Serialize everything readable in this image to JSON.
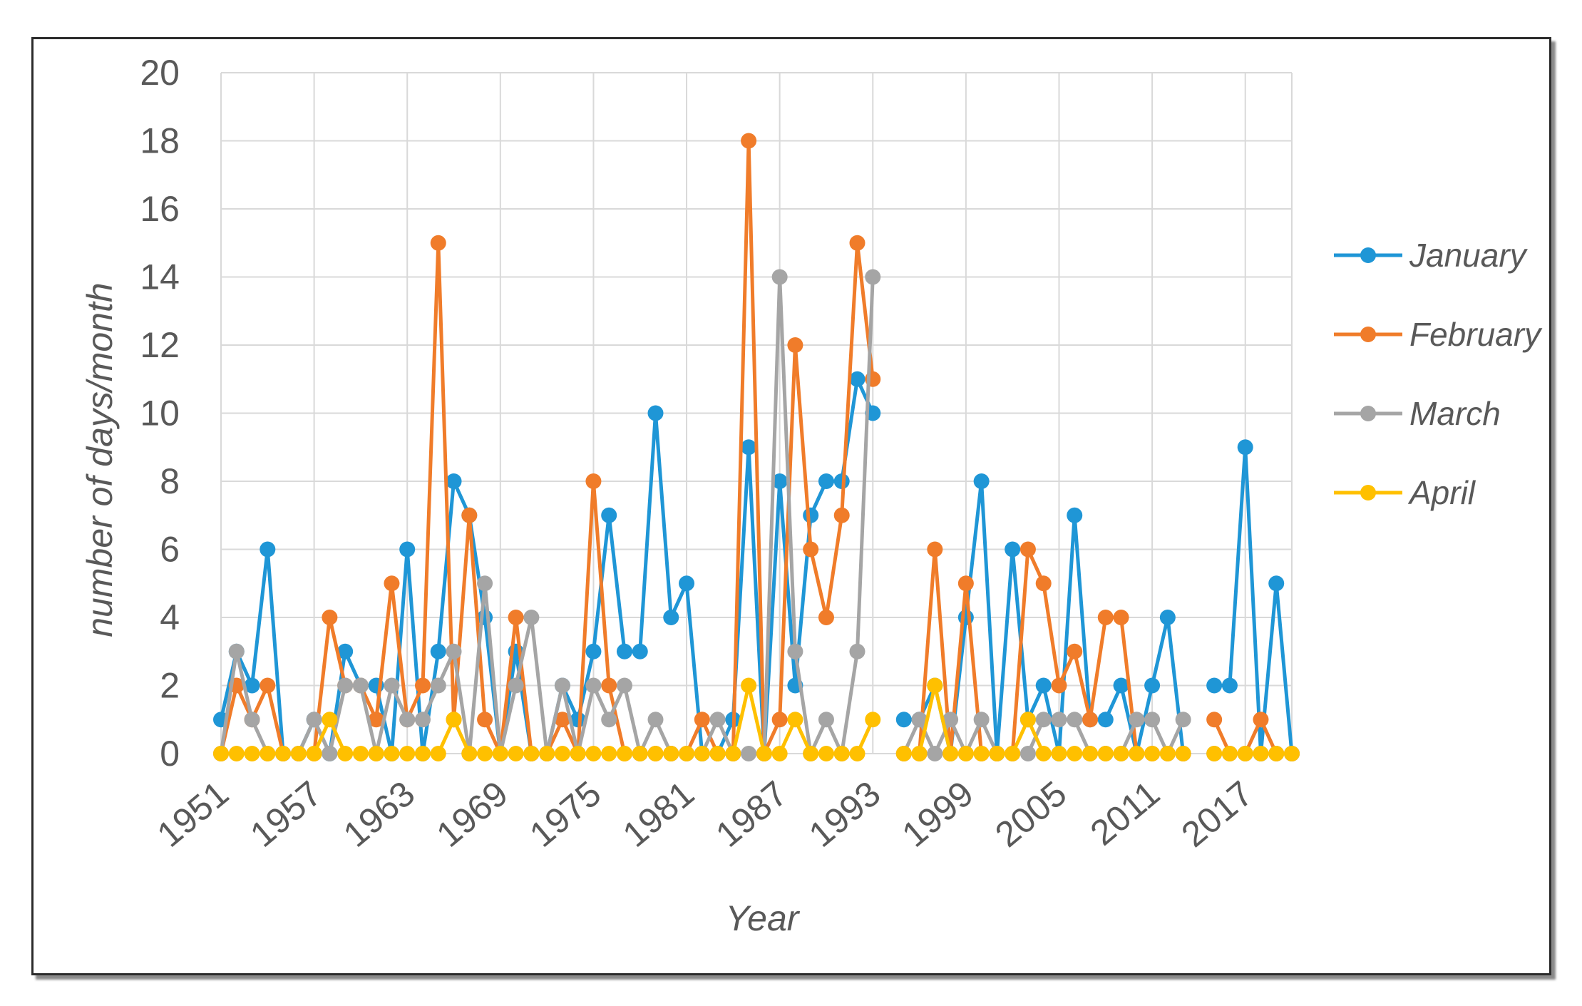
{
  "chart_data": {
    "type": "line",
    "title": "",
    "xlabel": "Year",
    "ylabel": "number of days/month",
    "ylim": [
      0,
      20
    ],
    "yticks": [
      0,
      2,
      4,
      6,
      8,
      10,
      12,
      14,
      16,
      18,
      20
    ],
    "xlim": [
      1951,
      2020
    ],
    "xticks": [
      "1951",
      "1957",
      "1963",
      "1969",
      "1975",
      "1981",
      "1987",
      "1993",
      "1999",
      "2005",
      "2011",
      "2017"
    ],
    "grid": "vertical-and-horizontal",
    "legend_position": "right",
    "series": [
      {
        "name": "January",
        "color": "#1f96d6",
        "points": [
          [
            1951,
            1
          ],
          [
            1952,
            3
          ],
          [
            1953,
            2
          ],
          [
            1954,
            6
          ],
          [
            1955,
            0
          ],
          [
            1956,
            0
          ],
          [
            1957,
            1
          ],
          [
            1958,
            0
          ],
          [
            1959,
            3
          ],
          [
            1960,
            2
          ],
          [
            1961,
            2
          ],
          [
            1962,
            0
          ],
          [
            1963,
            6
          ],
          [
            1964,
            0
          ],
          [
            1965,
            3
          ],
          [
            1966,
            8
          ],
          [
            1967,
            7
          ],
          [
            1968,
            4
          ],
          [
            1969,
            0
          ],
          [
            1970,
            3
          ],
          [
            1971,
            0
          ],
          [
            1972,
            0
          ],
          [
            1973,
            2
          ],
          [
            1974,
            1
          ],
          [
            1975,
            3
          ],
          [
            1976,
            7
          ],
          [
            1977,
            3
          ],
          [
            1978,
            3
          ],
          [
            1979,
            10
          ],
          [
            1980,
            4
          ],
          [
            1981,
            5
          ],
          [
            1982,
            0
          ],
          [
            1983,
            0
          ],
          [
            1984,
            1
          ],
          [
            1985,
            9
          ],
          [
            1986,
            0
          ],
          [
            1987,
            8
          ],
          [
            1988,
            2
          ],
          [
            1989,
            7
          ],
          [
            1990,
            8
          ],
          [
            1991,
            8
          ],
          [
            1992,
            11
          ],
          [
            1993,
            10
          ],
          null,
          [
            1995,
            1
          ],
          [
            1996,
            1
          ],
          [
            1997,
            2
          ],
          [
            1998,
            0
          ],
          [
            1999,
            4
          ],
          [
            2000,
            8
          ],
          [
            2001,
            0
          ],
          [
            2002,
            6
          ],
          [
            2003,
            1
          ],
          [
            2004,
            2
          ],
          [
            2005,
            0
          ],
          [
            2006,
            7
          ],
          [
            2007,
            1
          ],
          [
            2008,
            1
          ],
          [
            2009,
            2
          ],
          [
            2010,
            0
          ],
          [
            2011,
            2
          ],
          [
            2012,
            4
          ],
          [
            2013,
            0
          ],
          null,
          [
            2015,
            2
          ],
          [
            2016,
            2
          ],
          [
            2017,
            9
          ],
          [
            2018,
            0
          ],
          [
            2019,
            5
          ],
          [
            2020,
            0
          ]
        ]
      },
      {
        "name": "February",
        "color": "#f07c2a",
        "points": [
          [
            1951,
            0
          ],
          [
            1952,
            2
          ],
          [
            1953,
            1
          ],
          [
            1954,
            2
          ],
          [
            1955,
            0
          ],
          [
            1956,
            0
          ],
          [
            1957,
            0
          ],
          [
            1958,
            4
          ],
          [
            1959,
            2
          ],
          [
            1960,
            2
          ],
          [
            1961,
            1
          ],
          [
            1962,
            5
          ],
          [
            1963,
            1
          ],
          [
            1964,
            2
          ],
          [
            1965,
            15
          ],
          [
            1966,
            1
          ],
          [
            1967,
            7
          ],
          [
            1968,
            1
          ],
          [
            1969,
            0
          ],
          [
            1970,
            4
          ],
          [
            1971,
            0
          ],
          [
            1972,
            0
          ],
          [
            1973,
            1
          ],
          [
            1974,
            0
          ],
          [
            1975,
            8
          ],
          [
            1976,
            2
          ],
          [
            1977,
            0
          ],
          [
            1978,
            0
          ],
          [
            1979,
            0
          ],
          [
            1980,
            0
          ],
          [
            1981,
            0
          ],
          [
            1982,
            1
          ],
          [
            1983,
            0
          ],
          [
            1984,
            0
          ],
          [
            1985,
            18
          ],
          [
            1986,
            0
          ],
          [
            1987,
            1
          ],
          [
            1988,
            12
          ],
          [
            1989,
            6
          ],
          [
            1990,
            4
          ],
          [
            1991,
            7
          ],
          [
            1992,
            15
          ],
          [
            1993,
            11
          ],
          null,
          [
            1995,
            0
          ],
          [
            1996,
            0
          ],
          [
            1997,
            6
          ],
          [
            1998,
            0
          ],
          [
            1999,
            5
          ],
          [
            2000,
            0
          ],
          [
            2001,
            0
          ],
          [
            2002,
            0
          ],
          [
            2003,
            6
          ],
          [
            2004,
            5
          ],
          [
            2005,
            2
          ],
          [
            2006,
            3
          ],
          [
            2007,
            1
          ],
          [
            2008,
            4
          ],
          [
            2009,
            4
          ],
          [
            2010,
            0
          ],
          [
            2011,
            0
          ],
          [
            2012,
            0
          ],
          [
            2013,
            0
          ],
          null,
          [
            2015,
            1
          ],
          [
            2016,
            0
          ],
          [
            2017,
            0
          ],
          [
            2018,
            1
          ],
          [
            2019,
            0
          ],
          [
            2020,
            0
          ]
        ]
      },
      {
        "name": "March",
        "color": "#a5a5a5",
        "points": [
          [
            1951,
            0
          ],
          [
            1952,
            3
          ],
          [
            1953,
            1
          ],
          [
            1954,
            0
          ],
          [
            1955,
            0
          ],
          [
            1956,
            0
          ],
          [
            1957,
            1
          ],
          [
            1958,
            0
          ],
          [
            1959,
            2
          ],
          [
            1960,
            2
          ],
          [
            1961,
            0
          ],
          [
            1962,
            2
          ],
          [
            1963,
            1
          ],
          [
            1964,
            1
          ],
          [
            1965,
            2
          ],
          [
            1966,
            3
          ],
          [
            1967,
            0
          ],
          [
            1968,
            5
          ],
          [
            1969,
            0
          ],
          [
            1970,
            2
          ],
          [
            1971,
            4
          ],
          [
            1972,
            0
          ],
          [
            1973,
            2
          ],
          [
            1974,
            0
          ],
          [
            1975,
            2
          ],
          [
            1976,
            1
          ],
          [
            1977,
            2
          ],
          [
            1978,
            0
          ],
          [
            1979,
            1
          ],
          [
            1980,
            0
          ],
          [
            1981,
            0
          ],
          [
            1982,
            0
          ],
          [
            1983,
            1
          ],
          [
            1984,
            0
          ],
          [
            1985,
            0
          ],
          [
            1986,
            0
          ],
          [
            1987,
            14
          ],
          [
            1988,
            3
          ],
          [
            1989,
            0
          ],
          [
            1990,
            1
          ],
          [
            1991,
            0
          ],
          [
            1992,
            3
          ],
          [
            1993,
            14
          ],
          null,
          [
            1995,
            0
          ],
          [
            1996,
            1
          ],
          [
            1997,
            0
          ],
          [
            1998,
            1
          ],
          [
            1999,
            0
          ],
          [
            2000,
            1
          ],
          [
            2001,
            0
          ],
          [
            2002,
            0
          ],
          [
            2003,
            0
          ],
          [
            2004,
            1
          ],
          [
            2005,
            1
          ],
          [
            2006,
            1
          ],
          [
            2007,
            0
          ],
          [
            2008,
            0
          ],
          [
            2009,
            0
          ],
          [
            2010,
            1
          ],
          [
            2011,
            1
          ],
          [
            2012,
            0
          ],
          [
            2013,
            1
          ],
          null,
          [
            2015,
            0
          ],
          [
            2016,
            0
          ],
          [
            2017,
            0
          ],
          [
            2018,
            0
          ],
          [
            2019,
            0
          ],
          [
            2020,
            0
          ]
        ]
      },
      {
        "name": "April",
        "color": "#ffc000",
        "points": [
          [
            1951,
            0
          ],
          [
            1952,
            0
          ],
          [
            1953,
            0
          ],
          [
            1954,
            0
          ],
          [
            1955,
            0
          ],
          [
            1956,
            0
          ],
          [
            1957,
            0
          ],
          [
            1958,
            1
          ],
          [
            1959,
            0
          ],
          [
            1960,
            0
          ],
          [
            1961,
            0
          ],
          [
            1962,
            0
          ],
          [
            1963,
            0
          ],
          [
            1964,
            0
          ],
          [
            1965,
            0
          ],
          [
            1966,
            1
          ],
          [
            1967,
            0
          ],
          [
            1968,
            0
          ],
          [
            1969,
            0
          ],
          [
            1970,
            0
          ],
          [
            1971,
            0
          ],
          [
            1972,
            0
          ],
          [
            1973,
            0
          ],
          [
            1974,
            0
          ],
          [
            1975,
            0
          ],
          [
            1976,
            0
          ],
          [
            1977,
            0
          ],
          [
            1978,
            0
          ],
          [
            1979,
            0
          ],
          [
            1980,
            0
          ],
          [
            1981,
            0
          ],
          [
            1982,
            0
          ],
          [
            1983,
            0
          ],
          [
            1984,
            0
          ],
          [
            1985,
            2
          ],
          [
            1986,
            0
          ],
          [
            1987,
            0
          ],
          [
            1988,
            1
          ],
          [
            1989,
            0
          ],
          [
            1990,
            0
          ],
          [
            1991,
            0
          ],
          [
            1992,
            0
          ],
          [
            1993,
            1
          ],
          null,
          [
            1995,
            0
          ],
          [
            1996,
            0
          ],
          [
            1997,
            2
          ],
          [
            1998,
            0
          ],
          [
            1999,
            0
          ],
          [
            2000,
            0
          ],
          [
            2001,
            0
          ],
          [
            2002,
            0
          ],
          [
            2003,
            1
          ],
          [
            2004,
            0
          ],
          [
            2005,
            0
          ],
          [
            2006,
            0
          ],
          [
            2007,
            0
          ],
          [
            2008,
            0
          ],
          [
            2009,
            0
          ],
          [
            2010,
            0
          ],
          [
            2011,
            0
          ],
          [
            2012,
            0
          ],
          [
            2013,
            0
          ],
          null,
          [
            2015,
            0
          ],
          [
            2016,
            0
          ],
          [
            2017,
            0
          ],
          [
            2018,
            0
          ],
          [
            2019,
            0
          ],
          [
            2020,
            0
          ]
        ]
      }
    ]
  }
}
